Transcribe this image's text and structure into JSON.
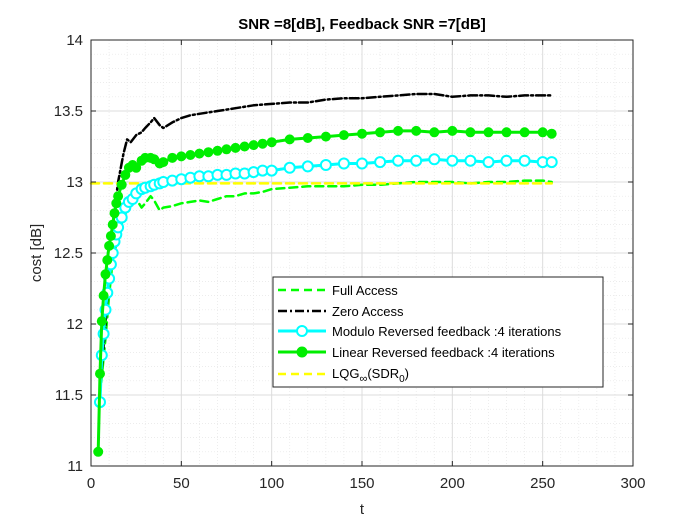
{
  "chart_data": {
    "type": "line",
    "title": "SNR =8[dB], Feedback SNR =7[dB]",
    "xlabel": "t",
    "ylabel": "cost [dB]",
    "xlim": [
      0,
      300
    ],
    "ylim": [
      11,
      14
    ],
    "xticks": [
      0,
      50,
      100,
      150,
      200,
      250,
      300
    ],
    "yticks": [
      11,
      11.5,
      12,
      12.5,
      13,
      13.5,
      14
    ],
    "xtick_labels": [
      "0",
      "50",
      "100",
      "150",
      "200",
      "250",
      "300"
    ],
    "ytick_labels": [
      "11",
      "11.5",
      "12",
      "12.5",
      "13",
      "13.5",
      "14"
    ],
    "grid": true,
    "minor_grid": true,
    "legend_position": "lower-right",
    "series": [
      {
        "name": "Full Access",
        "color": "#00ff00",
        "style": "dashed",
        "marker": "none",
        "x": [
          5,
          8,
          10,
          12,
          15,
          18,
          20,
          23,
          25,
          28,
          30,
          33,
          35,
          38,
          40,
          45,
          50,
          55,
          60,
          65,
          70,
          75,
          80,
          85,
          90,
          95,
          100,
          110,
          120,
          130,
          140,
          150,
          160,
          170,
          180,
          190,
          200,
          210,
          220,
          230,
          240,
          250,
          255
        ],
        "y": [
          11.5,
          11.9,
          12.2,
          12.45,
          12.62,
          12.75,
          12.8,
          12.85,
          12.88,
          12.82,
          12.85,
          12.9,
          12.87,
          12.8,
          12.82,
          12.83,
          12.85,
          12.86,
          12.87,
          12.86,
          12.88,
          12.9,
          12.9,
          12.92,
          12.92,
          12.93,
          12.95,
          12.96,
          12.97,
          12.97,
          12.97,
          12.98,
          12.98,
          12.99,
          13.0,
          13.0,
          13.0,
          12.99,
          13.0,
          13.0,
          13.01,
          13.01,
          13.0
        ]
      },
      {
        "name": "Zero Access",
        "color": "#000000",
        "style": "dashdot",
        "marker": "none",
        "x": [
          5,
          8,
          10,
          12,
          15,
          18,
          20,
          22,
          25,
          28,
          30,
          33,
          35,
          38,
          40,
          45,
          50,
          55,
          60,
          70,
          80,
          90,
          100,
          110,
          120,
          130,
          140,
          150,
          160,
          170,
          180,
          190,
          200,
          210,
          220,
          230,
          240,
          250,
          255
        ],
        "y": [
          11.55,
          12.0,
          12.4,
          12.7,
          13.0,
          13.2,
          13.3,
          13.28,
          13.33,
          13.35,
          13.38,
          13.42,
          13.45,
          13.4,
          13.38,
          13.42,
          13.45,
          13.47,
          13.48,
          13.5,
          13.52,
          13.54,
          13.55,
          13.56,
          13.56,
          13.58,
          13.59,
          13.59,
          13.6,
          13.61,
          13.62,
          13.62,
          13.6,
          13.61,
          13.61,
          13.6,
          13.61,
          13.61,
          13.61
        ]
      },
      {
        "name": "Modulo Reversed feedback :4 iterations",
        "color": "#00ffff",
        "style": "solid",
        "marker": "circle-open",
        "x": [
          5,
          6,
          7,
          8,
          9,
          10,
          11,
          12,
          13,
          14,
          15,
          17,
          19,
          21,
          23,
          25,
          28,
          30,
          33,
          35,
          38,
          40,
          45,
          50,
          55,
          60,
          65,
          70,
          75,
          80,
          85,
          90,
          95,
          100,
          110,
          120,
          130,
          140,
          150,
          160,
          170,
          180,
          190,
          200,
          210,
          220,
          230,
          240,
          250,
          255
        ],
        "y": [
          11.45,
          11.78,
          11.93,
          12.1,
          12.22,
          12.32,
          12.42,
          12.5,
          12.58,
          12.63,
          12.68,
          12.75,
          12.82,
          12.86,
          12.88,
          12.92,
          12.95,
          12.96,
          12.97,
          12.98,
          12.99,
          13.0,
          13.01,
          13.02,
          13.03,
          13.04,
          13.04,
          13.05,
          13.05,
          13.06,
          13.06,
          13.07,
          13.08,
          13.08,
          13.1,
          13.11,
          13.12,
          13.13,
          13.13,
          13.14,
          13.15,
          13.15,
          13.16,
          13.15,
          13.15,
          13.14,
          13.15,
          13.15,
          13.14,
          13.14
        ]
      },
      {
        "name": "Linear Reversed feedback :4 iterations",
        "color": "#00ee00",
        "style": "solid",
        "marker": "circle-filled",
        "x": [
          4,
          5,
          6,
          7,
          8,
          9,
          10,
          11,
          12,
          13,
          14,
          15,
          17,
          19,
          21,
          23,
          25,
          28,
          30,
          33,
          35,
          38,
          40,
          45,
          50,
          55,
          60,
          65,
          70,
          75,
          80,
          85,
          90,
          95,
          100,
          110,
          120,
          130,
          140,
          150,
          160,
          170,
          180,
          190,
          200,
          210,
          220,
          230,
          240,
          250,
          255
        ],
        "y": [
          11.1,
          11.65,
          12.02,
          12.2,
          12.35,
          12.45,
          12.55,
          12.62,
          12.7,
          12.78,
          12.85,
          12.9,
          12.98,
          13.05,
          13.1,
          13.12,
          13.1,
          13.15,
          13.17,
          13.17,
          13.16,
          13.13,
          13.14,
          13.17,
          13.18,
          13.19,
          13.2,
          13.21,
          13.22,
          13.23,
          13.24,
          13.25,
          13.26,
          13.27,
          13.28,
          13.3,
          13.31,
          13.32,
          13.33,
          13.34,
          13.35,
          13.36,
          13.36,
          13.35,
          13.36,
          13.35,
          13.35,
          13.35,
          13.35,
          13.35,
          13.34
        ]
      },
      {
        "name": "LQG∞(SDR0)",
        "color": "#ffff00",
        "style": "dashed",
        "marker": "none",
        "x": [
          0,
          255
        ],
        "y": [
          12.99,
          12.99
        ]
      }
    ]
  },
  "legend": {
    "entries": [
      {
        "text": "Full Access"
      },
      {
        "text": "Zero Access"
      },
      {
        "text": "Modulo Reversed feedback :4 iterations"
      },
      {
        "text": "Linear Reversed feedback :4 iterations"
      },
      {
        "main": "LQG",
        "sub": "∞",
        "open": "(SDR",
        "sub2": "0",
        "close": ")"
      }
    ]
  }
}
